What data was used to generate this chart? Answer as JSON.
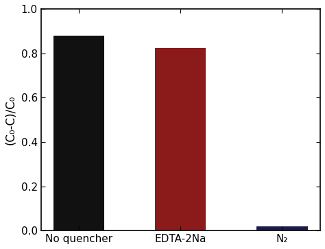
{
  "categories": [
    "No quencher",
    "EDTA-2Na",
    "N₂"
  ],
  "values": [
    0.878,
    0.822,
    0.018
  ],
  "bar_colors": [
    "#111111",
    "#8B1A1A",
    "#1a1a4e"
  ],
  "ylabel": "(C₀-C)/C₀",
  "ylim": [
    0.0,
    1.0
  ],
  "yticks": [
    0.0,
    0.2,
    0.4,
    0.6,
    0.8,
    1.0
  ],
  "bar_width": 0.5,
  "figsize": [
    4.74,
    3.63
  ],
  "dpi": 100,
  "ylabel_fontsize": 12,
  "tick_fontsize": 11,
  "xtick_fontsize": 11
}
